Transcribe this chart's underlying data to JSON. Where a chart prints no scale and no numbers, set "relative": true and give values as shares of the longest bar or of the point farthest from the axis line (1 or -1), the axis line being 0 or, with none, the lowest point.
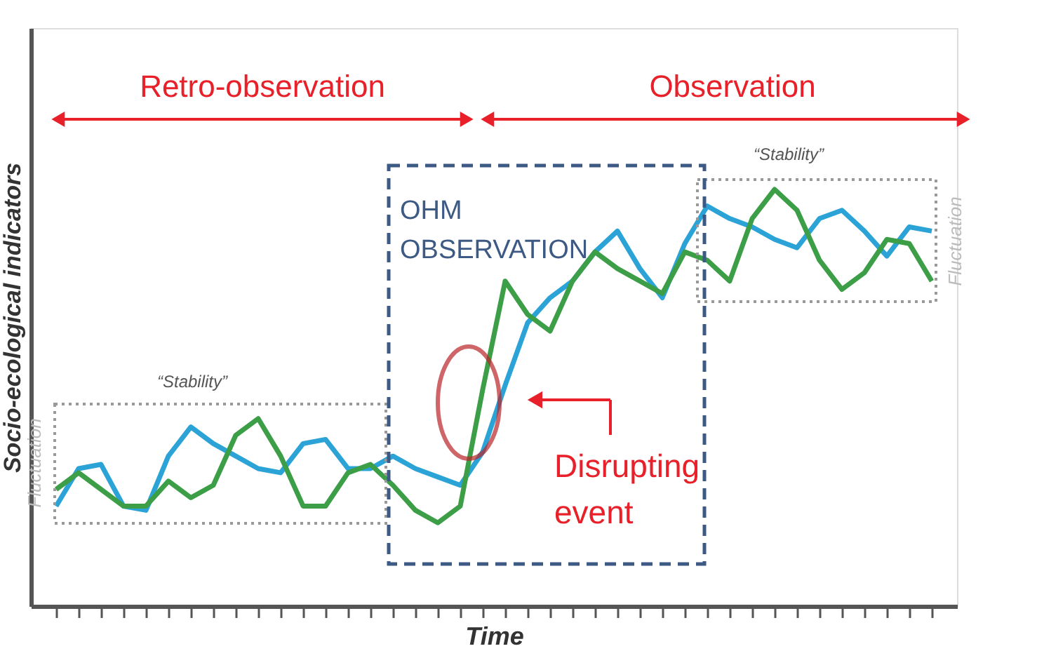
{
  "chart_data": {
    "type": "line",
    "relative": true,
    "xlabel": "Time",
    "ylabel": "Socio-ecological indicators",
    "tick_labels": false,
    "grid": false,
    "legend": false,
    "marker": "none",
    "line_style": "solid",
    "categories": [
      null,
      null,
      null,
      null,
      null,
      null,
      null,
      null,
      null,
      null,
      null,
      null,
      null,
      null,
      null,
      null,
      null,
      null,
      null,
      null,
      null,
      null,
      null,
      null,
      null,
      null,
      null,
      null,
      null,
      null,
      null,
      null,
      null,
      null,
      null,
      null,
      null,
      null,
      null,
      null
    ],
    "series": [
      {
        "color": "#2ba3d6",
        "values": [
          0.24,
          0.33,
          0.34,
          0.24,
          0.23,
          0.36,
          0.43,
          0.39,
          0.36,
          0.33,
          0.32,
          0.39,
          0.4,
          0.33,
          0.33,
          0.36,
          0.33,
          0.31,
          0.29,
          0.37,
          0.53,
          0.68,
          0.74,
          0.78,
          0.85,
          0.9,
          0.81,
          0.74,
          0.87,
          0.96,
          0.93,
          0.91,
          0.88,
          0.86,
          0.93,
          0.95,
          0.9,
          0.84,
          0.91,
          0.9
        ]
      },
      {
        "color": "#3c9e46",
        "values": [
          0.28,
          0.32,
          0.28,
          0.24,
          0.24,
          0.3,
          0.26,
          0.29,
          0.41,
          0.45,
          0.36,
          0.24,
          0.24,
          0.32,
          0.34,
          0.29,
          0.23,
          0.2,
          0.24,
          0.52,
          0.78,
          0.7,
          0.66,
          0.78,
          0.85,
          0.81,
          0.78,
          0.75,
          0.85,
          0.83,
          0.78,
          0.93,
          1.0,
          0.95,
          0.83,
          0.76,
          0.8,
          0.88,
          0.87,
          0.78
        ]
      }
    ],
    "annotations": [
      "Retro-observation",
      "Observation",
      "“Stability”",
      "“Stability”",
      "Fluctuation",
      "Fluctuation",
      "OHM OBSERVATION",
      "Disrupting event"
    ]
  }
}
